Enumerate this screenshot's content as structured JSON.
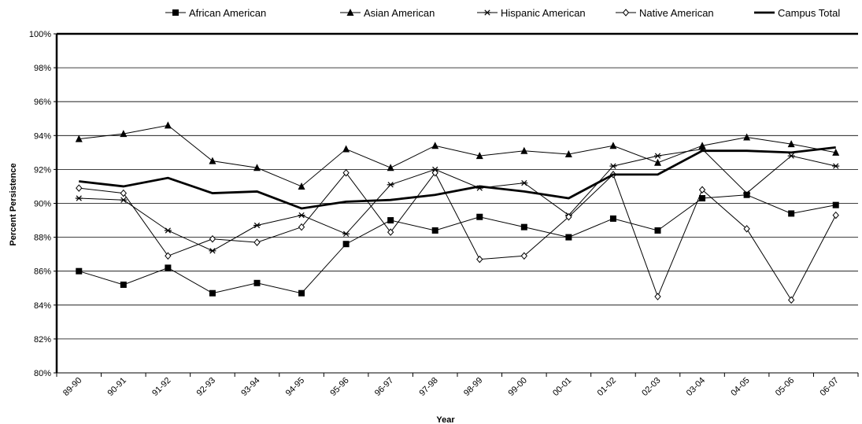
{
  "chart_data": {
    "type": "line",
    "title": "",
    "xlabel": "Year",
    "ylabel": "Percent Persistence",
    "ylim": [
      80,
      100
    ],
    "y_ticks": [
      80,
      82,
      84,
      86,
      88,
      90,
      92,
      94,
      96,
      98,
      100
    ],
    "y_tick_labels": [
      "80%",
      "82%",
      "84%",
      "86%",
      "88%",
      "90%",
      "92%",
      "94%",
      "96%",
      "98%",
      "100%"
    ],
    "grid": "horizontal",
    "legend_position": "top",
    "categories": [
      "89-90",
      "90-91",
      "91-92",
      "92-93",
      "93-94",
      "94-95",
      "95-96",
      "96-97",
      "97-98",
      "98-99",
      "99-00",
      "00-01",
      "01-02",
      "02-03",
      "03-04",
      "04-05",
      "05-06",
      "06-07"
    ],
    "series": [
      {
        "name": "African American",
        "marker": "square",
        "values": [
          86.0,
          85.2,
          86.2,
          84.7,
          85.3,
          84.7,
          87.6,
          89.0,
          88.4,
          89.2,
          88.6,
          88.0,
          89.1,
          88.4,
          90.3,
          90.5,
          89.4,
          89.9
        ]
      },
      {
        "name": "Asian American",
        "marker": "triangle",
        "values": [
          93.8,
          94.1,
          94.6,
          92.5,
          92.1,
          91.0,
          93.2,
          92.1,
          93.4,
          92.8,
          93.1,
          92.9,
          93.4,
          92.4,
          93.4,
          93.9,
          93.5,
          93.0
        ]
      },
      {
        "name": "Hispanic American",
        "marker": "asterisk",
        "values": [
          90.3,
          90.2,
          88.4,
          87.2,
          88.7,
          89.3,
          88.2,
          91.1,
          92.0,
          90.9,
          91.2,
          89.3,
          92.2,
          92.8,
          93.2,
          90.6,
          92.8,
          92.2
        ]
      },
      {
        "name": "Native American",
        "marker": "diamond",
        "values": [
          90.9,
          90.6,
          86.9,
          87.9,
          87.7,
          88.6,
          91.8,
          88.3,
          91.8,
          86.7,
          86.9,
          89.2,
          91.7,
          84.5,
          90.8,
          88.5,
          84.3,
          89.3
        ]
      },
      {
        "name": "Campus Total",
        "marker": "none",
        "values": [
          91.3,
          91.0,
          91.5,
          90.6,
          90.7,
          89.7,
          90.1,
          90.2,
          90.5,
          91.0,
          90.7,
          90.3,
          91.7,
          91.7,
          93.1,
          93.1,
          93.0,
          93.3
        ]
      }
    ]
  }
}
